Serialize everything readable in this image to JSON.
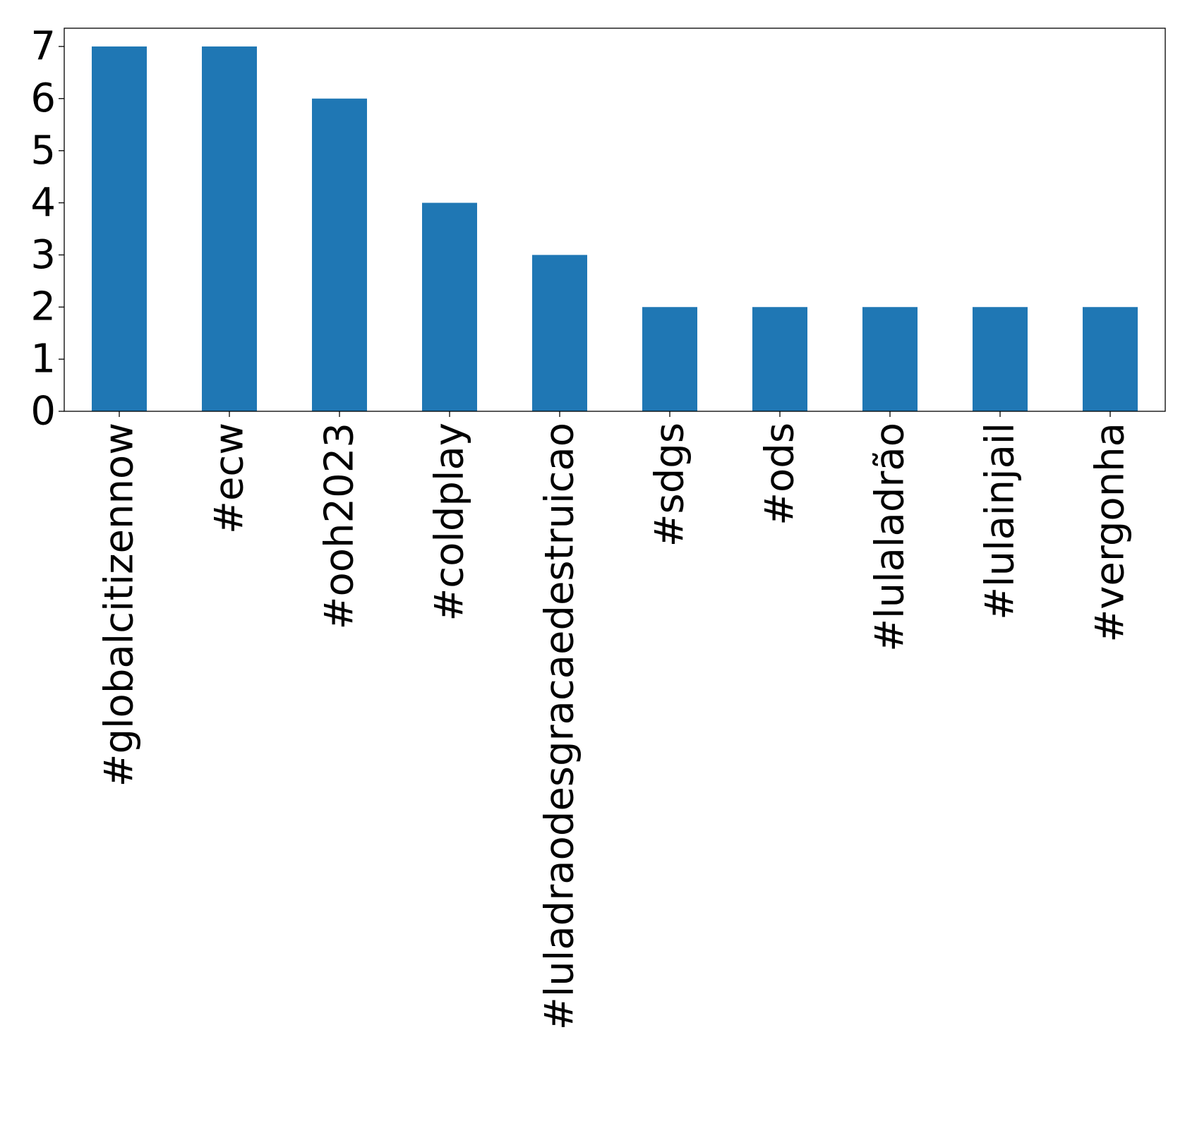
{
  "chart_data": {
    "type": "bar",
    "title": "",
    "xlabel": "",
    "ylabel": "",
    "categories": [
      "#globalcitizennow",
      "#ecw",
      "#ooh2023",
      "#coldplay",
      "#luladraodesgracaedestruicao",
      "#sdgs",
      "#ods",
      "#lulaladrão",
      "#lulainjail",
      "#vergonha"
    ],
    "values": [
      7,
      7,
      6,
      4,
      3,
      2,
      2,
      2,
      2,
      2
    ],
    "ylim": [
      0,
      7.35
    ],
    "yticks": [
      0,
      1,
      2,
      3,
      4,
      5,
      6,
      7
    ],
    "grid": false,
    "legend": "none",
    "bar_color": "#1f77b4"
  }
}
